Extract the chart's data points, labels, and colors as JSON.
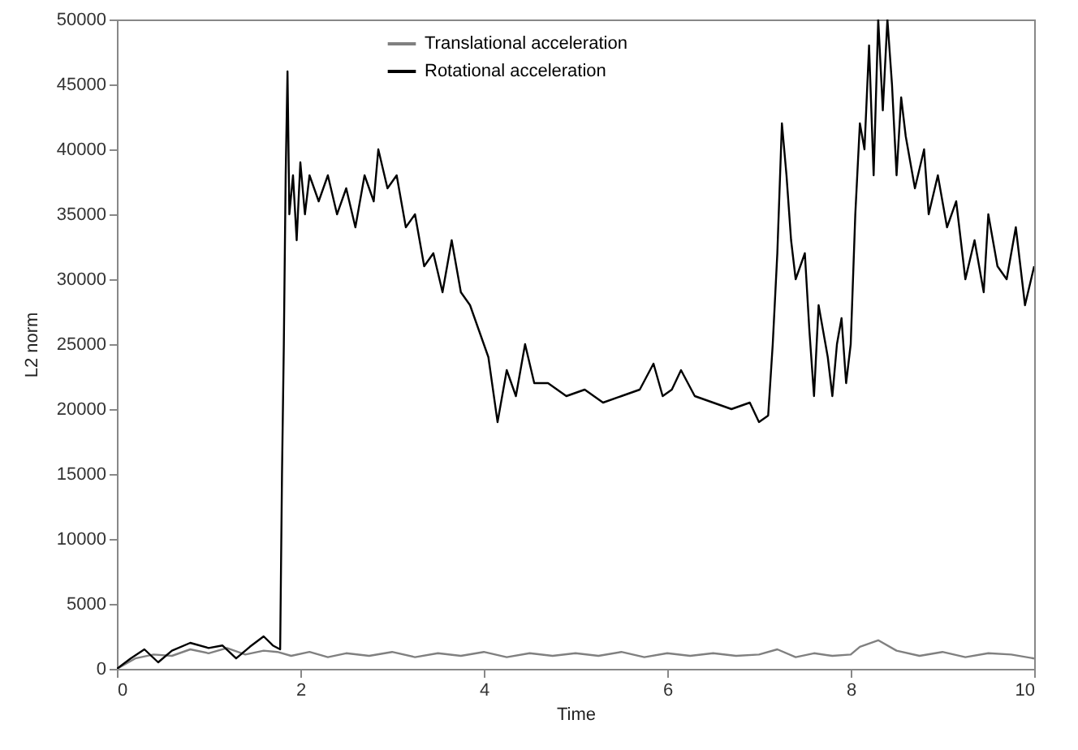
{
  "chart_data": {
    "type": "line",
    "xlabel": "Time",
    "ylabel": "L2 norm",
    "legend": "top",
    "grid": false,
    "xlim": [
      0,
      10
    ],
    "xticks": [
      0,
      2,
      4,
      6,
      8,
      10
    ],
    "ylim": [
      0,
      50000
    ],
    "yticks": [
      0,
      5000,
      10000,
      15000,
      20000,
      25000,
      30000,
      35000,
      40000,
      45000,
      50000
    ],
    "series": [
      {
        "name": "Translational acceleration",
        "color": "#808080",
        "x": [
          0,
          0.2,
          0.4,
          0.6,
          0.8,
          1.0,
          1.2,
          1.4,
          1.6,
          1.75,
          1.9,
          2.1,
          2.3,
          2.5,
          2.75,
          3.0,
          3.25,
          3.5,
          3.75,
          4.0,
          4.25,
          4.5,
          4.75,
          5.0,
          5.25,
          5.5,
          5.75,
          6.0,
          6.25,
          6.5,
          6.75,
          7.0,
          7.2,
          7.4,
          7.6,
          7.8,
          8.0,
          8.1,
          8.3,
          8.5,
          8.75,
          9.0,
          9.25,
          9.5,
          9.75,
          10.0
        ],
        "values": [
          0,
          800,
          1100,
          1000,
          1500,
          1200,
          1600,
          1100,
          1400,
          1300,
          1000,
          1300,
          900,
          1200,
          1000,
          1300,
          900,
          1200,
          1000,
          1300,
          900,
          1200,
          1000,
          1200,
          1000,
          1300,
          900,
          1200,
          1000,
          1200,
          1000,
          1100,
          1500,
          900,
          1200,
          1000,
          1100,
          1700,
          2200,
          1400,
          1000,
          1300,
          900,
          1200,
          1100,
          800
        ]
      },
      {
        "name": "Rotational acceleration",
        "color": "#000000",
        "x": [
          0,
          0.15,
          0.3,
          0.45,
          0.6,
          0.8,
          1.0,
          1.15,
          1.3,
          1.45,
          1.6,
          1.7,
          1.78,
          1.8,
          1.82,
          1.84,
          1.86,
          1.88,
          1.92,
          1.96,
          2.0,
          2.05,
          2.1,
          2.2,
          2.3,
          2.4,
          2.5,
          2.6,
          2.7,
          2.8,
          2.85,
          2.95,
          3.05,
          3.15,
          3.25,
          3.35,
          3.45,
          3.55,
          3.65,
          3.75,
          3.85,
          3.95,
          4.05,
          4.15,
          4.25,
          4.35,
          4.45,
          4.55,
          4.7,
          4.9,
          5.1,
          5.3,
          5.5,
          5.7,
          5.85,
          5.95,
          6.05,
          6.15,
          6.3,
          6.5,
          6.7,
          6.9,
          7.0,
          7.1,
          7.15,
          7.2,
          7.25,
          7.3,
          7.35,
          7.4,
          7.5,
          7.55,
          7.6,
          7.65,
          7.75,
          7.8,
          7.85,
          7.9,
          7.95,
          8.0,
          8.05,
          8.1,
          8.15,
          8.2,
          8.25,
          8.3,
          8.35,
          8.4,
          8.45,
          8.5,
          8.55,
          8.6,
          8.7,
          8.8,
          8.85,
          8.95,
          9.05,
          9.15,
          9.25,
          9.35,
          9.45,
          9.5,
          9.6,
          9.7,
          9.8,
          9.9,
          10.0
        ],
        "values": [
          0,
          800,
          1500,
          500,
          1400,
          2000,
          1600,
          1800,
          800,
          1700,
          2500,
          1800,
          1500,
          15000,
          25000,
          38000,
          46000,
          35000,
          38000,
          33000,
          39000,
          35000,
          38000,
          36000,
          38000,
          35000,
          37000,
          34000,
          38000,
          36000,
          40000,
          37000,
          38000,
          34000,
          35000,
          31000,
          32000,
          29000,
          33000,
          29000,
          28000,
          26000,
          24000,
          19000,
          23000,
          21000,
          25000,
          22000,
          22000,
          21000,
          21500,
          20500,
          21000,
          21500,
          23500,
          21000,
          21500,
          23000,
          21000,
          20500,
          20000,
          20500,
          19000,
          19500,
          25000,
          32000,
          42000,
          38000,
          33000,
          30000,
          32000,
          26000,
          21000,
          28000,
          24000,
          21000,
          25000,
          27000,
          22000,
          25000,
          35000,
          42000,
          40000,
          48000,
          38000,
          50000,
          43000,
          50000,
          45000,
          38000,
          44000,
          41000,
          37000,
          40000,
          35000,
          38000,
          34000,
          36000,
          30000,
          33000,
          29000,
          35000,
          31000,
          30000,
          34000,
          28000,
          31000
        ]
      }
    ]
  }
}
